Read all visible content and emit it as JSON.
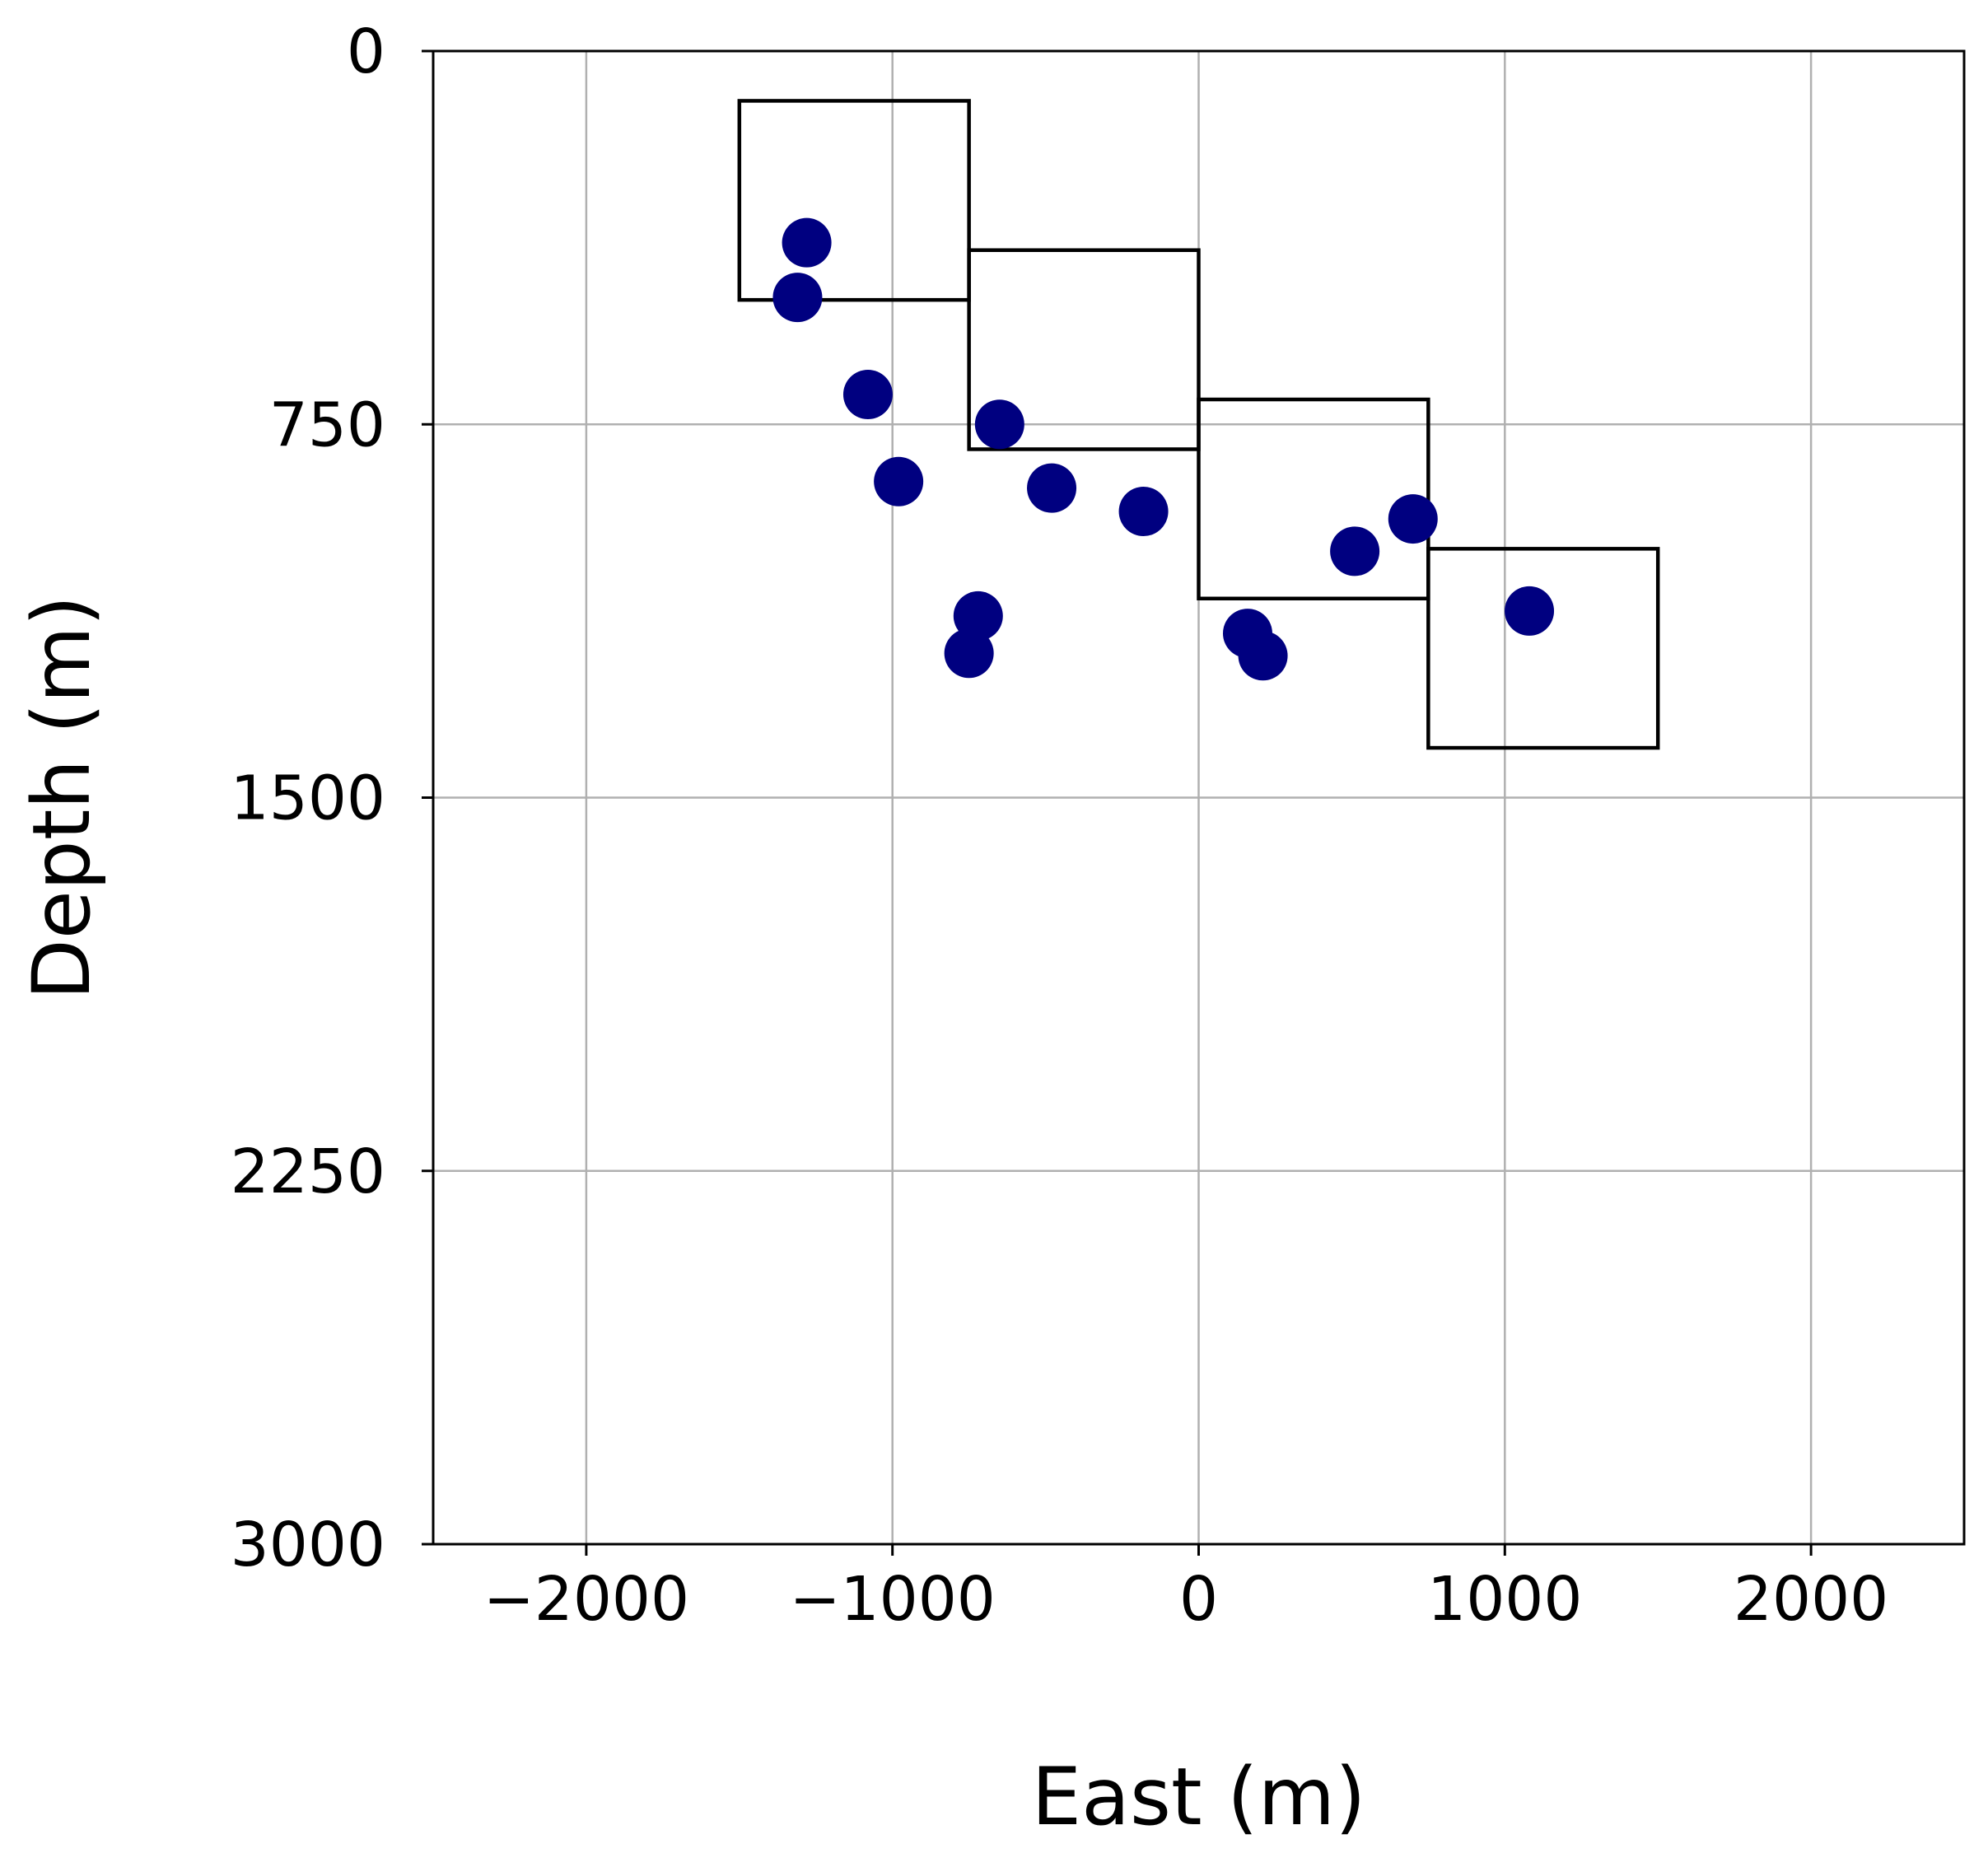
{
  "chart_data": {
    "type": "scatter",
    "xlabel": "East (m)",
    "ylabel": "Depth (m)",
    "xlim": [
      -2500,
      2500
    ],
    "ylim": [
      3000,
      0
    ],
    "y_inverted": true,
    "x_ticks": [
      -2000,
      -1000,
      0,
      1000,
      2000
    ],
    "x_tick_labels": [
      "−2000",
      "−1000",
      "0",
      "1000",
      "2000"
    ],
    "y_ticks": [
      0,
      750,
      1500,
      2250,
      3000
    ],
    "y_tick_labels": [
      "0",
      "750",
      "1500",
      "2250",
      "3000"
    ],
    "grid": true,
    "marker_color": "#000080",
    "points": [
      {
        "x": -1280,
        "y": 385
      },
      {
        "x": -1310,
        "y": 495
      },
      {
        "x": -1080,
        "y": 690
      },
      {
        "x": -980,
        "y": 865
      },
      {
        "x": -650,
        "y": 750
      },
      {
        "x": -480,
        "y": 878
      },
      {
        "x": -180,
        "y": 925
      },
      {
        "x": -720,
        "y": 1135
      },
      {
        "x": -750,
        "y": 1210
      },
      {
        "x": 160,
        "y": 1170
      },
      {
        "x": 210,
        "y": 1215
      },
      {
        "x": 510,
        "y": 1005
      },
      {
        "x": 700,
        "y": 940
      },
      {
        "x": 1080,
        "y": 1125
      }
    ],
    "boxes": [
      {
        "x0": -1500,
        "x1": -750,
        "y0": 100,
        "y1": 500
      },
      {
        "x0": -750,
        "x1": 0,
        "y0": 400,
        "y1": 800
      },
      {
        "x0": 0,
        "x1": 750,
        "y0": 700,
        "y1": 1100
      },
      {
        "x0": 750,
        "x1": 1500,
        "y0": 1000,
        "y1": 1400
      }
    ]
  }
}
